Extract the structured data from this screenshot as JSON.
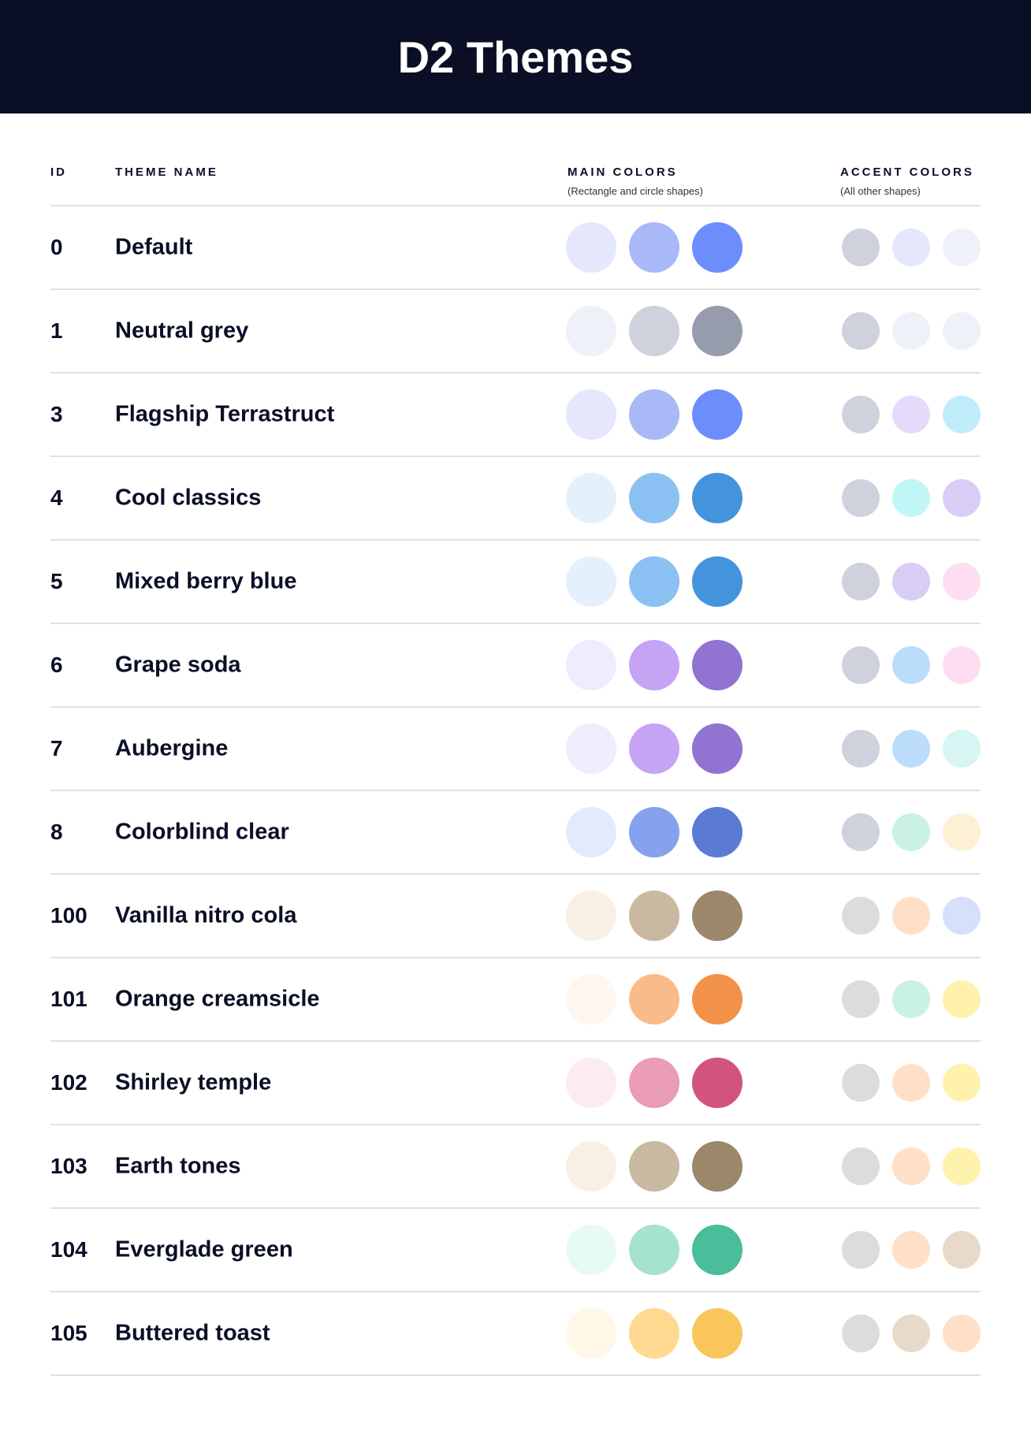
{
  "title": "D2 Themes",
  "headers": {
    "id": "ID",
    "name": "THEME NAME",
    "main": "MAIN COLORS",
    "main_sub": "(Rectangle and circle shapes)",
    "accent": "ACCENT COLORS",
    "accent_sub": "(All other shapes)"
  },
  "themes": [
    {
      "id": "0",
      "name": "Default",
      "main": [
        "#E5E8FC",
        "#A9B8F7",
        "#6C8DFC"
      ],
      "accent": [
        "#CFD2DD",
        "#E5E8FC",
        "#EEF1F8"
      ]
    },
    {
      "id": "1",
      "name": "Neutral grey",
      "main": [
        "#EEF1F8",
        "#CFD2DD",
        "#979CAD"
      ],
      "accent": [
        "#CFD2DD",
        "#EEF1F8",
        "#EEF1F8"
      ]
    },
    {
      "id": "3",
      "name": "Flagship Terrastruct",
      "main": [
        "#E5E8FC",
        "#A9B8F7",
        "#6C8DFC"
      ],
      "accent": [
        "#CFD2DD",
        "#E5DBFB",
        "#C1EDFB"
      ]
    },
    {
      "id": "4",
      "name": "Cool classics",
      "main": [
        "#E4F1FC",
        "#8BC0F3",
        "#4393DD"
      ],
      "accent": [
        "#CFD2DD",
        "#C0F7F6",
        "#D9CDF6"
      ]
    },
    {
      "id": "5",
      "name": "Mixed berry blue",
      "main": [
        "#E4F1FC",
        "#8BC0F3",
        "#4393DD"
      ],
      "accent": [
        "#CFD2DD",
        "#D9CDF6",
        "#FDDEF0"
      ]
    },
    {
      "id": "6",
      "name": "Grape soda",
      "main": [
        "#F0EBFD",
        "#C4A4F3",
        "#9173D1"
      ],
      "accent": [
        "#CFD2DD",
        "#BCDCFB",
        "#FDDEF0"
      ]
    },
    {
      "id": "7",
      "name": "Aubergine",
      "main": [
        "#F0EBFD",
        "#C4A4F3",
        "#9173D1"
      ],
      "accent": [
        "#CFD2DD",
        "#BCDCFB",
        "#D6F5F3"
      ]
    },
    {
      "id": "8",
      "name": "Colorblind clear",
      "main": [
        "#E5E9FD",
        "#87A2EC",
        "#5A7AD4"
      ],
      "accent": [
        "#CFD2DD",
        "#C9F1E4",
        "#FDF0D5"
      ]
    },
    {
      "id": "100",
      "name": "Vanilla nitro cola",
      "main": [
        "#F8F0E5",
        "#C9B9A0",
        "#9B876A"
      ],
      "accent": [
        "#DDDCDA",
        "#FEE0C8",
        "#D6E0FA"
      ]
    },
    {
      "id": "101",
      "name": "Orange creamsicle",
      "main": [
        "#FFF6F0",
        "#FABB8A",
        "#F19248"
      ],
      "accent": [
        "#DDDCDA",
        "#C9F1E4",
        "#FFF2AC"
      ]
    },
    {
      "id": "102",
      "name": "Shirley temple",
      "main": [
        "#FCECF2",
        "#EA9BB6",
        "#D3527F"
      ],
      "accent": [
        "#DDDCDA",
        "#FEE0C8",
        "#FFF2AC"
      ]
    },
    {
      "id": "103",
      "name": "Earth tones",
      "main": [
        "#F8F0E5",
        "#C9B9A0",
        "#9B876A"
      ],
      "accent": [
        "#DDDCDA",
        "#FEE0C8",
        "#FFF2AC"
      ]
    },
    {
      "id": "104",
      "name": "Everglade green",
      "main": [
        "#E6FBF3",
        "#A6E3CF",
        "#4ABD9B"
      ],
      "accent": [
        "#DDDCDA",
        "#FEE0C8",
        "#E8DACA"
      ]
    },
    {
      "id": "105",
      "name": "Buttered toast",
      "main": [
        "#FFF7E7",
        "#FFD990",
        "#F9C65C"
      ],
      "accent": [
        "#DDDCDA",
        "#E8DACA",
        "#FEE0C8"
      ]
    }
  ]
}
